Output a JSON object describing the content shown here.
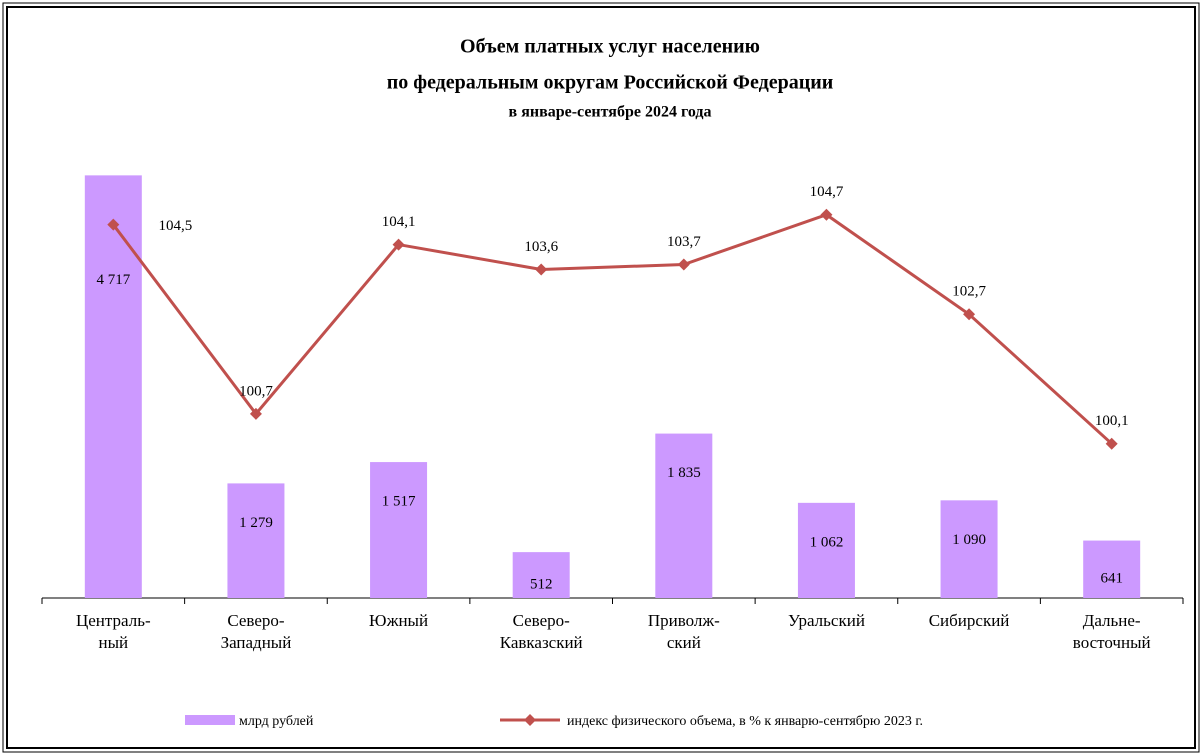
{
  "chart_data": {
    "type": "bar_line",
    "title": "Объем платных  услуг населению",
    "subtitle": "по федеральным  округам  Российской  Федерации",
    "subtitle2": "в январе-сентябре 2024 года",
    "categories": [
      "Централь-\nный",
      "Северо-\nЗападный",
      "Южный",
      "Северо-\nКавказский",
      "Приволж-\nский",
      "Уральский",
      "Сибирский",
      "Дальне-\nвосточный"
    ],
    "series": [
      {
        "name": "млрд рублей",
        "type": "bar",
        "color": "#cc99ff",
        "values": [
          4717,
          1279,
          1517,
          512,
          1835,
          1062,
          1090,
          641
        ],
        "value_labels": [
          "4 717",
          "1 279",
          "1 517",
          "512",
          "1 835",
          "1 062",
          "1 090",
          "641"
        ]
      },
      {
        "name": "индекс физического объема, в % к январю-сентябрю 2023 г.",
        "type": "line",
        "axis": "y2",
        "color": "#c0504d",
        "values": [
          104.5,
          100.7,
          104.1,
          103.6,
          103.7,
          104.7,
          102.7,
          100.1
        ],
        "value_labels": [
          "104,5",
          "100,7",
          "104,1",
          "103,6",
          "103,7",
          "104,7",
          "102,7",
          "100,1"
        ]
      }
    ],
    "ylim": [
      0,
      5000
    ],
    "y2lim": [
      97,
      106
    ]
  }
}
